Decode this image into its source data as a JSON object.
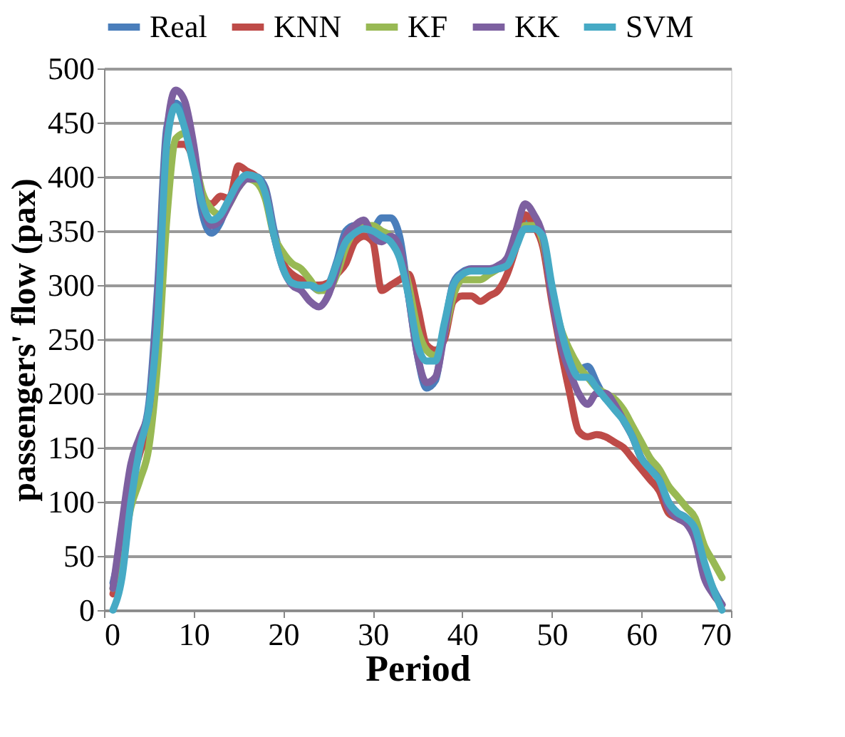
{
  "chart_data": {
    "type": "line",
    "xlabel": "Period",
    "ylabel": "passengers' flow (pax)",
    "xlim": [
      0,
      70
    ],
    "xticks": [
      0,
      10,
      20,
      30,
      40,
      50,
      60,
      70
    ],
    "ylim": [
      0,
      500
    ],
    "yticks": [
      0,
      50,
      100,
      150,
      200,
      250,
      300,
      350,
      400,
      450,
      500
    ],
    "grid": "y",
    "legend": "top",
    "marker": "none",
    "line_style": "solid",
    "x": [
      1,
      2,
      3,
      4,
      5,
      6,
      7,
      8,
      9,
      10,
      11,
      12,
      13,
      14,
      15,
      16,
      17,
      18,
      19,
      20,
      21,
      22,
      23,
      24,
      25,
      26,
      27,
      28,
      29,
      30,
      31,
      32,
      33,
      34,
      35,
      36,
      37,
      38,
      39,
      40,
      41,
      42,
      43,
      44,
      45,
      46,
      47,
      48,
      49,
      50,
      51,
      52,
      53,
      54,
      55,
      56,
      57,
      58,
      59,
      60,
      61,
      62,
      63,
      64,
      65,
      66,
      67,
      68,
      69
    ],
    "series": [
      {
        "name": "Real",
        "color": "#4a7ebb",
        "values": [
          25,
          65,
          125,
          155,
          190,
          300,
          445,
          468,
          455,
          415,
          365,
          348,
          358,
          380,
          395,
          400,
          400,
          390,
          350,
          320,
          305,
          300,
          300,
          295,
          300,
          322,
          350,
          355,
          355,
          352,
          362,
          362,
          345,
          290,
          235,
          205,
          212,
          260,
          302,
          312,
          315,
          315,
          315,
          315,
          320,
          340,
          362,
          355,
          340,
          290,
          250,
          235,
          222,
          225,
          210,
          195,
          190,
          175,
          160,
          140,
          130,
          120,
          100,
          90,
          85,
          70,
          40,
          20,
          5
        ]
      },
      {
        "name": "KNN",
        "color": "#be4b48",
        "values": [
          15,
          50,
          115,
          145,
          175,
          270,
          400,
          430,
          430,
          415,
          380,
          375,
          382,
          380,
          410,
          405,
          400,
          385,
          345,
          320,
          310,
          305,
          300,
          300,
          302,
          310,
          320,
          340,
          345,
          340,
          295,
          300,
          305,
          310,
          280,
          245,
          240,
          250,
          285,
          290,
          290,
          285,
          290,
          295,
          310,
          335,
          365,
          355,
          335,
          285,
          240,
          200,
          165,
          160,
          162,
          160,
          155,
          150,
          140,
          130,
          120,
          110,
          90,
          85,
          80,
          70,
          35,
          15,
          5
        ]
      },
      {
        "name": "KF",
        "color": "#98b954",
        "values": [
          20,
          50,
          95,
          120,
          150,
          230,
          360,
          435,
          440,
          420,
          385,
          370,
          365,
          375,
          390,
          398,
          395,
          380,
          345,
          330,
          320,
          315,
          305,
          295,
          295,
          310,
          335,
          350,
          355,
          355,
          350,
          345,
          330,
          300,
          260,
          240,
          235,
          255,
          290,
          305,
          305,
          305,
          310,
          315,
          320,
          340,
          355,
          355,
          340,
          295,
          260,
          240,
          225,
          215,
          205,
          200,
          195,
          185,
          170,
          155,
          140,
          130,
          115,
          105,
          95,
          85,
          60,
          45,
          30
        ]
      },
      {
        "name": "KK",
        "color": "#7d60a0",
        "values": [
          20,
          80,
          135,
          160,
          185,
          290,
          440,
          480,
          470,
          430,
          375,
          355,
          360,
          375,
          390,
          398,
          398,
          388,
          345,
          315,
          300,
          295,
          285,
          280,
          290,
          315,
          345,
          355,
          360,
          345,
          340,
          345,
          335,
          290,
          235,
          210,
          215,
          255,
          300,
          310,
          315,
          315,
          315,
          318,
          325,
          350,
          375,
          365,
          345,
          290,
          245,
          220,
          200,
          190,
          200,
          200,
          190,
          175,
          160,
          140,
          130,
          120,
          95,
          85,
          80,
          65,
          30,
          15,
          5
        ]
      },
      {
        "name": "SVM",
        "color": "#46aac5",
        "values": [
          0,
          30,
          100,
          150,
          185,
          270,
          430,
          465,
          445,
          410,
          375,
          360,
          365,
          380,
          395,
          402,
          400,
          385,
          345,
          315,
          302,
          300,
          300,
          297,
          300,
          320,
          340,
          348,
          352,
          350,
          345,
          340,
          325,
          290,
          245,
          230,
          230,
          265,
          300,
          310,
          313,
          313,
          313,
          315,
          318,
          335,
          352,
          352,
          345,
          300,
          260,
          230,
          215,
          215,
          205,
          195,
          185,
          175,
          160,
          140,
          130,
          120,
          100,
          90,
          85,
          75,
          45,
          20,
          0
        ]
      }
    ]
  }
}
